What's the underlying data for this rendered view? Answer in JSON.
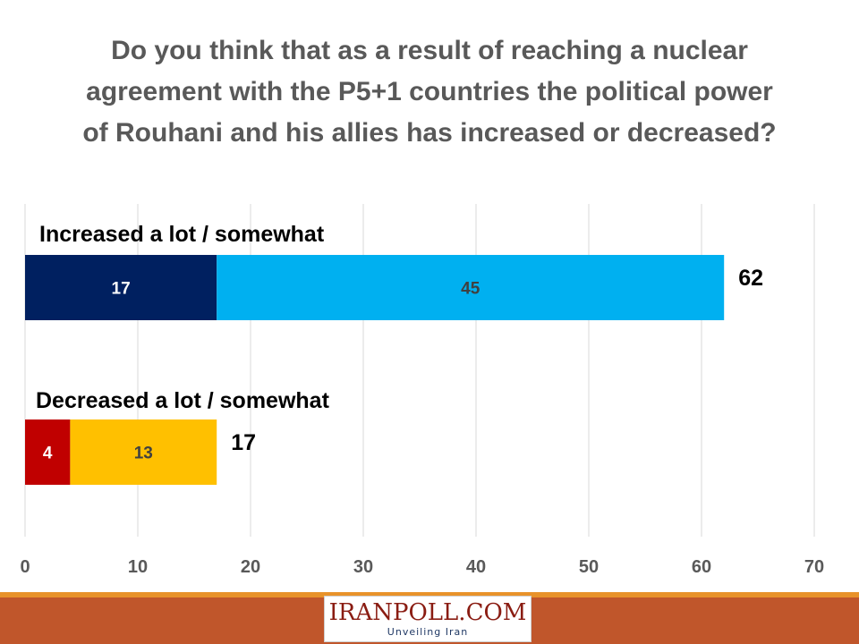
{
  "title": "Do you think that as a result of reaching a nuclear agreement with the P5+1 countries the political power of Rouhani and his allies has increased or decreased?",
  "chart_data": {
    "type": "bar",
    "orientation": "horizontal",
    "stacked": true,
    "categories": [
      "Increased a lot / somewhat",
      "Decreased a lot / somewhat"
    ],
    "segments": [
      [
        {
          "value": 17,
          "color": "#002060",
          "label_color": "#ffffff"
        },
        {
          "value": 45,
          "color": "#00b0f0",
          "label_color": "#404040"
        }
      ],
      [
        {
          "value": 4,
          "color": "#c00000",
          "label_color": "#ffffff"
        },
        {
          "value": 13,
          "color": "#ffc000",
          "label_color": "#404040"
        }
      ]
    ],
    "totals": [
      62,
      17
    ],
    "xlim": [
      0,
      70
    ],
    "xticks": [
      0,
      10,
      20,
      30,
      40,
      50,
      60,
      70
    ],
    "grid": true,
    "legend": "none"
  },
  "footer": {
    "logo_text": "IRANPOLL.COM",
    "logo_tagline": "Unveiling Iran"
  }
}
